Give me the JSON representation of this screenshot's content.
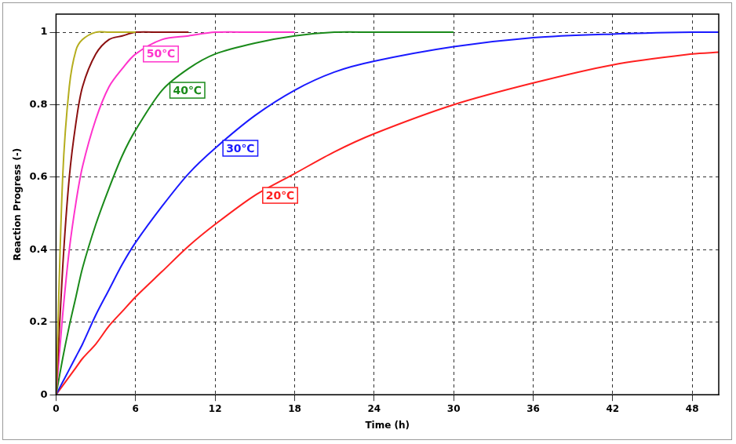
{
  "chart_data": {
    "type": "line",
    "x_label": "Time (h)",
    "y_label": "Reaction Progress (-)",
    "x": [
      0,
      0.5,
      1,
      1.5,
      2,
      3,
      4,
      5,
      6,
      8,
      10,
      12,
      15,
      18,
      21,
      24,
      30,
      36,
      42,
      48,
      50
    ],
    "series": [
      {
        "color": "#b5ad1e",
        "values": [
          0,
          0.6,
          0.85,
          0.95,
          0.98,
          1,
          1,
          1,
          1,
          null,
          null,
          null,
          null,
          null,
          null,
          null,
          null,
          null,
          null,
          null,
          null
        ]
      },
      {
        "color": "#8b1010",
        "values": [
          0,
          0.35,
          0.6,
          0.75,
          0.85,
          0.94,
          0.98,
          0.99,
          1,
          1,
          1,
          null,
          null,
          null,
          null,
          null,
          null,
          null,
          null,
          null,
          null
        ]
      },
      {
        "name": "50℃",
        "color": "#ff33cc",
        "values": [
          0,
          0.22,
          0.4,
          0.53,
          0.63,
          0.76,
          0.85,
          0.9,
          0.94,
          0.98,
          0.99,
          1,
          1,
          1,
          null,
          null,
          null,
          null,
          null,
          null,
          null
        ]
      },
      {
        "name": "40℃",
        "color": "#1a8a1a",
        "values": [
          0,
          0.1,
          0.19,
          0.27,
          0.35,
          0.47,
          0.57,
          0.66,
          0.73,
          0.84,
          0.9,
          0.94,
          0.97,
          0.99,
          1,
          1,
          1,
          null,
          null,
          null,
          null
        ]
      },
      {
        "name": "30℃",
        "color": "#1a1aff",
        "values": [
          0,
          0.035,
          0.07,
          0.105,
          0.14,
          0.22,
          0.29,
          0.36,
          0.42,
          0.52,
          0.61,
          0.68,
          0.77,
          0.84,
          0.89,
          0.92,
          0.96,
          0.985,
          0.995,
          1,
          1
        ]
      },
      {
        "name": "20℃",
        "color": "#ff2020",
        "values": [
          0,
          0.025,
          0.05,
          0.075,
          0.1,
          0.14,
          0.19,
          0.23,
          0.27,
          0.34,
          0.41,
          0.47,
          0.55,
          0.61,
          0.67,
          0.72,
          0.8,
          0.86,
          0.91,
          0.94,
          0.945
        ]
      }
    ],
    "xlim": [
      0,
      50
    ],
    "xticks": [
      0,
      6,
      12,
      18,
      24,
      30,
      36,
      42,
      48
    ],
    "ylim": [
      0,
      1.05
    ],
    "yticks": [
      0,
      0.2,
      0.4,
      0.6,
      0.8,
      1
    ],
    "grid": true
  }
}
